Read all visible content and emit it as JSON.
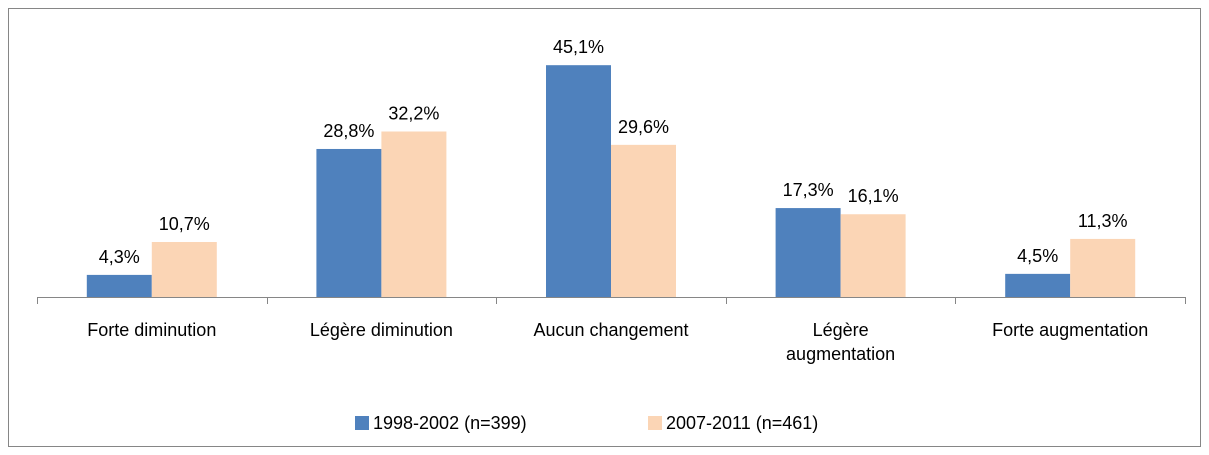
{
  "chart_data": {
    "type": "bar",
    "categories": [
      "Forte diminution",
      "Légère diminution",
      "Aucun changement",
      "Légère augmentation",
      "Forte augmentation"
    ],
    "series": [
      {
        "name": "1998-2002 (n=399)",
        "color": "#4f81bd",
        "values": [
          4.3,
          28.8,
          45.1,
          17.3,
          4.5
        ],
        "value_labels": [
          "4,3%",
          "28,8%",
          "45,1%",
          "17,3%",
          "4,5%"
        ]
      },
      {
        "name": "2007-2011 (n=461)",
        "color": "#fbd5b5",
        "values": [
          10.7,
          32.2,
          29.6,
          16.1,
          11.3
        ],
        "value_labels": [
          "10,7%",
          "32,2%",
          "29,6%",
          "16,1%",
          "11,3%"
        ]
      }
    ],
    "ylim": [
      0,
      50
    ]
  }
}
